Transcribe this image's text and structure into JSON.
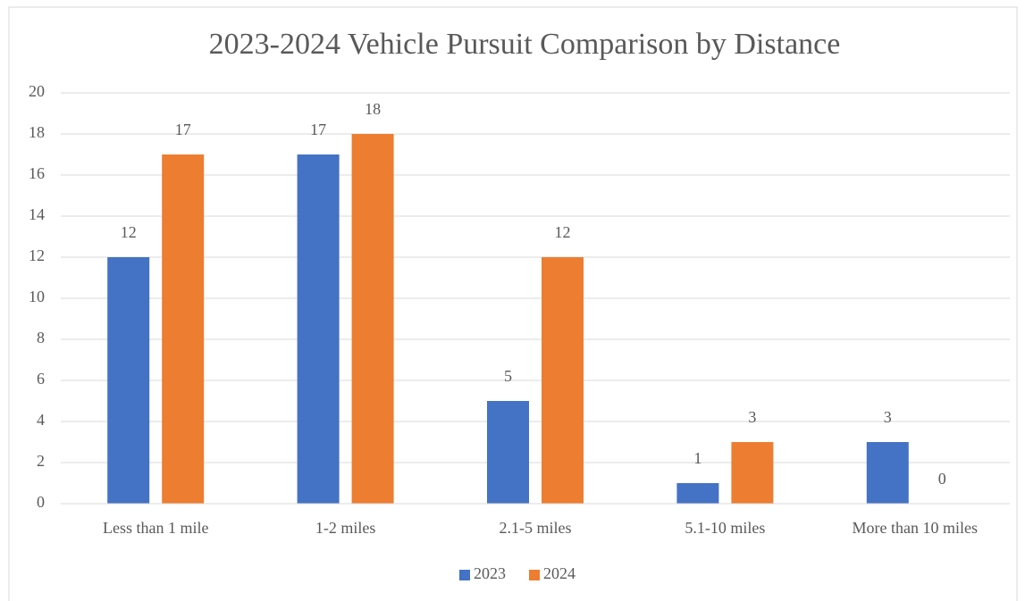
{
  "chart_data": {
    "type": "bar",
    "title": "2023-2024 Vehicle Pursuit Comparison by Distance",
    "categories": [
      "Less than 1 mile",
      "1-2 miles",
      "2.1-5 miles",
      "5.1-10 miles",
      "More than 10 miles"
    ],
    "series": [
      {
        "name": "2023",
        "color": "#4472c4",
        "values": [
          12,
          17,
          5,
          1,
          3
        ]
      },
      {
        "name": "2024",
        "color": "#ed7d31",
        "values": [
          17,
          18,
          12,
          3,
          0
        ]
      }
    ],
    "ylim": [
      0,
      20
    ],
    "yticks": [
      0,
      2,
      4,
      6,
      8,
      10,
      12,
      14,
      16,
      18,
      20
    ],
    "grid": true,
    "legend": "bottom",
    "data_labels": true
  }
}
